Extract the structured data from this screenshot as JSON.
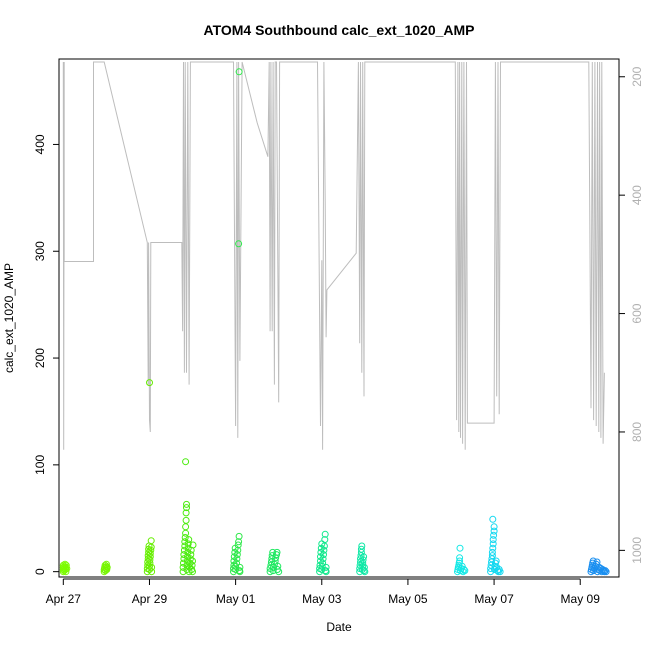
{
  "chart_data": {
    "type": "scatter",
    "title": "ATOM4 Southbound calc_ext_1020_AMP",
    "xlabel": "Date",
    "ylabel": "calc_ext_1020_AMP",
    "x_domain_days": [
      -0.1,
      12.9
    ],
    "x_ticks": [
      {
        "day": 0,
        "label": "Apr 27"
      },
      {
        "day": 2,
        "label": "Apr 29"
      },
      {
        "day": 4,
        "label": "May 01"
      },
      {
        "day": 6,
        "label": "May 03"
      },
      {
        "day": 8,
        "label": "May 05"
      },
      {
        "day": 10,
        "label": "May 07"
      },
      {
        "day": 12,
        "label": "May 09"
      }
    ],
    "ylim": [
      -5,
      480
    ],
    "y_ticks": [
      0,
      100,
      200,
      300,
      400
    ],
    "y2lim": [
      1045,
      170
    ],
    "y2_ticks": [
      200,
      400,
      600,
      800,
      1000
    ],
    "grid": false,
    "series": [
      {
        "color": "#7cfc00",
        "points": [
          [
            0.0,
            0
          ],
          [
            0.0,
            2
          ],
          [
            0.0,
            4
          ],
          [
            0.0,
            6
          ],
          [
            0.02,
            1
          ],
          [
            0.02,
            3
          ],
          [
            0.03,
            5
          ],
          [
            0.04,
            7
          ],
          [
            0.05,
            2
          ],
          [
            0.06,
            4
          ],
          [
            0.06,
            0
          ],
          [
            0.07,
            6
          ],
          [
            0.08,
            3
          ]
        ]
      },
      {
        "color": "#76f500",
        "points": [
          [
            0.95,
            0
          ],
          [
            0.95,
            2
          ],
          [
            0.96,
            4
          ],
          [
            0.97,
            6
          ],
          [
            0.98,
            1
          ],
          [
            0.99,
            3
          ],
          [
            1.0,
            5
          ],
          [
            1.0,
            7
          ],
          [
            1.01,
            2
          ],
          [
            1.02,
            4
          ]
        ]
      },
      {
        "color": "#66ee00",
        "points": [
          [
            1.95,
            0
          ],
          [
            1.95,
            3
          ],
          [
            1.96,
            6
          ],
          [
            1.96,
            9
          ],
          [
            1.97,
            12
          ],
          [
            1.97,
            15
          ],
          [
            1.98,
            18
          ],
          [
            1.98,
            21
          ],
          [
            1.99,
            24
          ],
          [
            2.0,
            2
          ],
          [
            2.0,
            5
          ],
          [
            2.01,
            8
          ],
          [
            2.01,
            11
          ],
          [
            2.02,
            14
          ],
          [
            2.02,
            17
          ],
          [
            2.03,
            20
          ],
          [
            2.04,
            23
          ],
          [
            2.04,
            29
          ],
          [
            2.05,
            4
          ],
          [
            2.05,
            0
          ],
          [
            2.0,
            177
          ]
        ]
      },
      {
        "color": "#4cec10",
        "points": [
          [
            2.78,
            0
          ],
          [
            2.78,
            4
          ],
          [
            2.79,
            8
          ],
          [
            2.8,
            12
          ],
          [
            2.8,
            16
          ],
          [
            2.81,
            20
          ],
          [
            2.82,
            24
          ],
          [
            2.82,
            28
          ],
          [
            2.83,
            32
          ],
          [
            2.84,
            36
          ],
          [
            2.84,
            42
          ],
          [
            2.85,
            48
          ],
          [
            2.85,
            55
          ],
          [
            2.86,
            60
          ],
          [
            2.86,
            63
          ],
          [
            2.87,
            2
          ],
          [
            2.87,
            6
          ],
          [
            2.88,
            10
          ],
          [
            2.88,
            14
          ],
          [
            2.89,
            18
          ],
          [
            2.9,
            22
          ],
          [
            2.9,
            26
          ],
          [
            2.91,
            30
          ],
          [
            2.92,
            0
          ],
          [
            2.93,
            4
          ],
          [
            2.94,
            8
          ],
          [
            2.95,
            12
          ],
          [
            2.96,
            16
          ],
          [
            2.97,
            20
          ],
          [
            2.98,
            2
          ],
          [
            2.99,
            6
          ],
          [
            3.0,
            10
          ],
          [
            3.0,
            0
          ],
          [
            3.01,
            25
          ],
          [
            2.84,
            103
          ]
        ]
      },
      {
        "color": "#2ee84a",
        "points": [
          [
            3.95,
            0
          ],
          [
            3.95,
            3
          ],
          [
            3.96,
            6
          ],
          [
            3.96,
            10
          ],
          [
            3.97,
            14
          ],
          [
            3.98,
            18
          ],
          [
            3.99,
            22
          ],
          [
            4.0,
            2
          ],
          [
            4.0,
            5
          ],
          [
            4.02,
            8
          ],
          [
            4.03,
            12
          ],
          [
            4.04,
            16
          ],
          [
            4.05,
            20
          ],
          [
            4.06,
            25
          ],
          [
            4.07,
            28
          ],
          [
            4.08,
            33
          ],
          [
            4.09,
            1
          ],
          [
            4.1,
            4
          ],
          [
            4.1,
            0
          ],
          [
            4.07,
            307
          ],
          [
            4.08,
            468
          ]
        ]
      },
      {
        "color": "#1ee860",
        "points": [
          [
            4.8,
            0
          ],
          [
            4.8,
            3
          ],
          [
            4.82,
            6
          ],
          [
            4.83,
            9
          ],
          [
            4.84,
            12
          ],
          [
            4.85,
            15
          ],
          [
            4.86,
            18
          ],
          [
            4.87,
            1
          ],
          [
            4.88,
            4
          ],
          [
            4.9,
            7
          ],
          [
            4.92,
            10
          ],
          [
            4.93,
            13
          ],
          [
            4.95,
            16
          ],
          [
            4.96,
            18
          ],
          [
            4.97,
            2
          ],
          [
            4.98,
            5
          ],
          [
            5.0,
            0
          ]
        ]
      },
      {
        "color": "#10e88c",
        "points": [
          [
            5.95,
            0
          ],
          [
            5.95,
            3
          ],
          [
            5.96,
            6
          ],
          [
            5.97,
            10
          ],
          [
            5.97,
            14
          ],
          [
            5.98,
            18
          ],
          [
            5.99,
            22
          ],
          [
            6.0,
            26
          ],
          [
            6.0,
            2
          ],
          [
            6.01,
            5
          ],
          [
            6.02,
            8
          ],
          [
            6.03,
            12
          ],
          [
            6.04,
            16
          ],
          [
            6.05,
            20
          ],
          [
            6.06,
            24
          ],
          [
            6.07,
            30
          ],
          [
            6.08,
            35
          ],
          [
            6.09,
            1
          ],
          [
            6.1,
            4
          ],
          [
            6.1,
            0
          ]
        ]
      },
      {
        "color": "#0ee8a6",
        "points": [
          [
            6.88,
            0
          ],
          [
            6.88,
            3
          ],
          [
            6.89,
            6
          ],
          [
            6.9,
            9
          ],
          [
            6.9,
            12
          ],
          [
            6.91,
            15
          ],
          [
            6.92,
            18
          ],
          [
            6.92,
            21
          ],
          [
            6.93,
            24
          ],
          [
            6.94,
            2
          ],
          [
            6.95,
            5
          ],
          [
            6.95,
            8
          ],
          [
            6.96,
            11
          ],
          [
            6.97,
            14
          ],
          [
            6.98,
            1
          ],
          [
            6.99,
            4
          ],
          [
            7.0,
            0
          ]
        ]
      },
      {
        "color": "#14e8e6",
        "points": [
          [
            9.15,
            0
          ],
          [
            9.16,
            2
          ],
          [
            9.17,
            4
          ],
          [
            9.18,
            6
          ],
          [
            9.19,
            8
          ],
          [
            9.2,
            10
          ],
          [
            9.2,
            13
          ],
          [
            9.21,
            22
          ],
          [
            9.22,
            1
          ],
          [
            9.24,
            3
          ],
          [
            9.26,
            5
          ],
          [
            9.28,
            0
          ],
          [
            9.3,
            2
          ],
          [
            9.32,
            1
          ]
        ]
      },
      {
        "color": "#14d8f0",
        "points": [
          [
            9.92,
            0
          ],
          [
            9.92,
            3
          ],
          [
            9.93,
            6
          ],
          [
            9.94,
            9
          ],
          [
            9.95,
            12
          ],
          [
            9.96,
            15
          ],
          [
            9.96,
            18
          ],
          [
            9.97,
            22
          ],
          [
            9.98,
            26
          ],
          [
            9.98,
            30
          ],
          [
            9.99,
            34
          ],
          [
            10.0,
            38
          ],
          [
            10.0,
            42
          ],
          [
            9.97,
            49
          ],
          [
            10.01,
            2
          ],
          [
            10.02,
            5
          ],
          [
            10.03,
            8
          ],
          [
            10.05,
            10
          ],
          [
            10.06,
            4
          ],
          [
            10.08,
            1
          ],
          [
            10.1,
            0
          ],
          [
            10.12,
            2
          ],
          [
            10.14,
            0
          ]
        ]
      },
      {
        "color": "#1a8ff0",
        "points": [
          [
            12.25,
            0
          ],
          [
            12.26,
            2
          ],
          [
            12.27,
            4
          ],
          [
            12.28,
            6
          ],
          [
            12.29,
            8
          ],
          [
            12.3,
            10
          ],
          [
            12.31,
            1
          ],
          [
            12.33,
            3
          ],
          [
            12.35,
            5
          ],
          [
            12.37,
            7
          ],
          [
            12.39,
            9
          ],
          [
            12.4,
            0
          ],
          [
            12.42,
            2
          ],
          [
            12.44,
            4
          ],
          [
            12.46,
            1
          ],
          [
            12.48,
            3
          ],
          [
            12.5,
            0
          ],
          [
            12.52,
            2
          ],
          [
            12.54,
            1
          ],
          [
            12.56,
            0
          ],
          [
            12.58,
            1
          ],
          [
            12.6,
            0
          ]
        ]
      }
    ],
    "secondary_line": {
      "color": "#bdbdbd",
      "points": [
        [
          0.0,
          175
        ],
        [
          0.01,
          830
        ],
        [
          0.02,
          175
        ],
        [
          0.02,
          512
        ],
        [
          0.7,
          512
        ],
        [
          0.7,
          175
        ],
        [
          0.95,
          175
        ],
        [
          1.95,
          480
        ],
        [
          1.97,
          720
        ],
        [
          1.98,
          480
        ],
        [
          2.0,
          780
        ],
        [
          2.02,
          800
        ],
        [
          2.03,
          480
        ],
        [
          2.75,
          480
        ],
        [
          2.77,
          630
        ],
        [
          2.79,
          175
        ],
        [
          2.81,
          700
        ],
        [
          2.83,
          175
        ],
        [
          2.86,
          700
        ],
        [
          2.89,
          175
        ],
        [
          2.92,
          720
        ],
        [
          2.95,
          175
        ],
        [
          3.4,
          175
        ],
        [
          3.95,
          175
        ],
        [
          4.0,
          790
        ],
        [
          4.03,
          175
        ],
        [
          4.05,
          810
        ],
        [
          4.07,
          175
        ],
        [
          4.1,
          680
        ],
        [
          4.15,
          175
        ],
        [
          4.5,
          278
        ],
        [
          4.75,
          335
        ],
        [
          4.78,
          175
        ],
        [
          4.8,
          630
        ],
        [
          4.82,
          175
        ],
        [
          4.85,
          630
        ],
        [
          4.87,
          175
        ],
        [
          4.9,
          720
        ],
        [
          4.92,
          175
        ],
        [
          4.95,
          175
        ],
        [
          5.0,
          750
        ],
        [
          5.02,
          175
        ],
        [
          5.9,
          175
        ],
        [
          5.97,
          790
        ],
        [
          6.0,
          510
        ],
        [
          6.02,
          830
        ],
        [
          6.05,
          175
        ],
        [
          6.08,
          410
        ],
        [
          6.1,
          640
        ],
        [
          6.12,
          560
        ],
        [
          6.8,
          498
        ],
        [
          6.85,
          175
        ],
        [
          6.88,
          650
        ],
        [
          6.9,
          175
        ],
        [
          6.93,
          700
        ],
        [
          6.95,
          175
        ],
        [
          6.98,
          740
        ],
        [
          7.0,
          175
        ],
        [
          8.5,
          175
        ],
        [
          8.8,
          175
        ],
        [
          9.1,
          175
        ],
        [
          9.13,
          780
        ],
        [
          9.16,
          175
        ],
        [
          9.18,
          800
        ],
        [
          9.2,
          175
        ],
        [
          9.22,
          810
        ],
        [
          9.25,
          175
        ],
        [
          9.27,
          820
        ],
        [
          9.3,
          175
        ],
        [
          9.33,
          830
        ],
        [
          9.36,
          175
        ],
        [
          9.38,
          785
        ],
        [
          10.0,
          785
        ],
        [
          10.03,
          175
        ],
        [
          10.06,
          740
        ],
        [
          10.09,
          175
        ],
        [
          10.12,
          770
        ],
        [
          10.15,
          175
        ],
        [
          12.2,
          175
        ],
        [
          12.25,
          760
        ],
        [
          12.28,
          175
        ],
        [
          12.31,
          780
        ],
        [
          12.34,
          175
        ],
        [
          12.37,
          790
        ],
        [
          12.4,
          175
        ],
        [
          12.43,
          800
        ],
        [
          12.45,
          175
        ],
        [
          12.48,
          810
        ],
        [
          12.5,
          175
        ],
        [
          12.53,
          820
        ],
        [
          12.56,
          700
        ]
      ]
    }
  }
}
